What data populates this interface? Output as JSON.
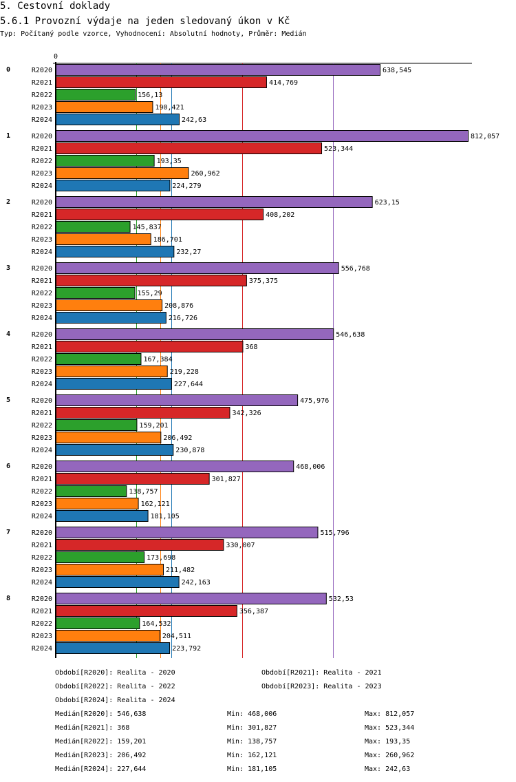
{
  "header": {
    "section": "5. Cestovní doklady",
    "title": "5.6.1 Provozní výdaje na jeden sledovaný úkon v Kč",
    "subtitle": "Typ: Počítaný podle vzorce, Vyhodnocení: Absolutní hodnoty, Průměr: Medián"
  },
  "chart_data": {
    "type": "bar",
    "orientation": "horizontal",
    "title": "5.6.1 Provozní výdaje na jeden sledovaný úkon v Kč",
    "xlabel": "",
    "ylabel": "",
    "x_tick_labels": [
      "0"
    ],
    "xlim": [
      0,
      820
    ],
    "categories": [
      "0",
      "1",
      "2",
      "3",
      "4",
      "5",
      "6",
      "7",
      "8"
    ],
    "series": [
      {
        "name": "R2020",
        "color": "#9467bd",
        "values": [
          638.545,
          812.057,
          623.15,
          556.768,
          546.638,
          475.976,
          468.006,
          515.796,
          532.53
        ],
        "labels": [
          "638,545",
          "812,057",
          "623,15",
          "556,768",
          "546,638",
          "475,976",
          "468,006",
          "515,796",
          "532,53"
        ],
        "median": 546.638
      },
      {
        "name": "R2021",
        "color": "#d62728",
        "values": [
          414.769,
          523.344,
          408.202,
          375.375,
          368,
          342.326,
          301.827,
          330.007,
          356.387
        ],
        "labels": [
          "414,769",
          "523,344",
          "408,202",
          "375,375",
          "368",
          "342,326",
          "301,827",
          "330,007",
          "356,387"
        ],
        "median": 368
      },
      {
        "name": "R2022",
        "color": "#2ca02c",
        "values": [
          156.13,
          193.35,
          145.837,
          155.29,
          167.384,
          159.201,
          138.757,
          173.698,
          164.532
        ],
        "labels": [
          "156,13",
          "193,35",
          "145,837",
          "155,29",
          "167,384",
          "159,201",
          "138,757",
          "173,698",
          "164,532"
        ],
        "median": 159.201
      },
      {
        "name": "R2023",
        "color": "#ff7f0e",
        "values": [
          190.421,
          260.962,
          186.701,
          208.876,
          219.228,
          206.492,
          162.121,
          211.482,
          204.511
        ],
        "labels": [
          "190,421",
          "260,962",
          "186,701",
          "208,876",
          "219,228",
          "206,492",
          "162,121",
          "211,482",
          "204,511"
        ],
        "median": 206.492
      },
      {
        "name": "R2024",
        "color": "#1f77b4",
        "values": [
          242.63,
          224.279,
          232.27,
          216.726,
          227.644,
          230.878,
          181.105,
          242.163,
          223.792
        ],
        "labels": [
          "242,63",
          "224,279",
          "232,27",
          "216,726",
          "227,644",
          "230,878",
          "181,105",
          "242,163",
          "223,792"
        ],
        "median": 227.644
      }
    ],
    "median_lines": true,
    "legend_position": "bottom"
  },
  "legend": {
    "periods": [
      "Období[R2020]: Realita - 2020",
      "Období[R2021]: Realita - 2021",
      "Období[R2022]: Realita - 2022",
      "Období[R2023]: Realita - 2023",
      "Období[R2024]: Realita - 2024"
    ],
    "stats": [
      {
        "median": "Medián[R2020]: 546,638",
        "min": "Min: 468,006",
        "max": "Max: 812,057"
      },
      {
        "median": "Medián[R2021]: 368",
        "min": "Min: 301,827",
        "max": "Max: 523,344"
      },
      {
        "median": "Medián[R2022]: 159,201",
        "min": "Min: 138,757",
        "max": "Max: 193,35"
      },
      {
        "median": "Medián[R2023]: 206,492",
        "min": "Min: 162,121",
        "max": "Max: 260,962"
      },
      {
        "median": "Medián[R2024]: 227,644",
        "min": "Min: 181,105",
        "max": "Max: 242,63"
      }
    ]
  }
}
